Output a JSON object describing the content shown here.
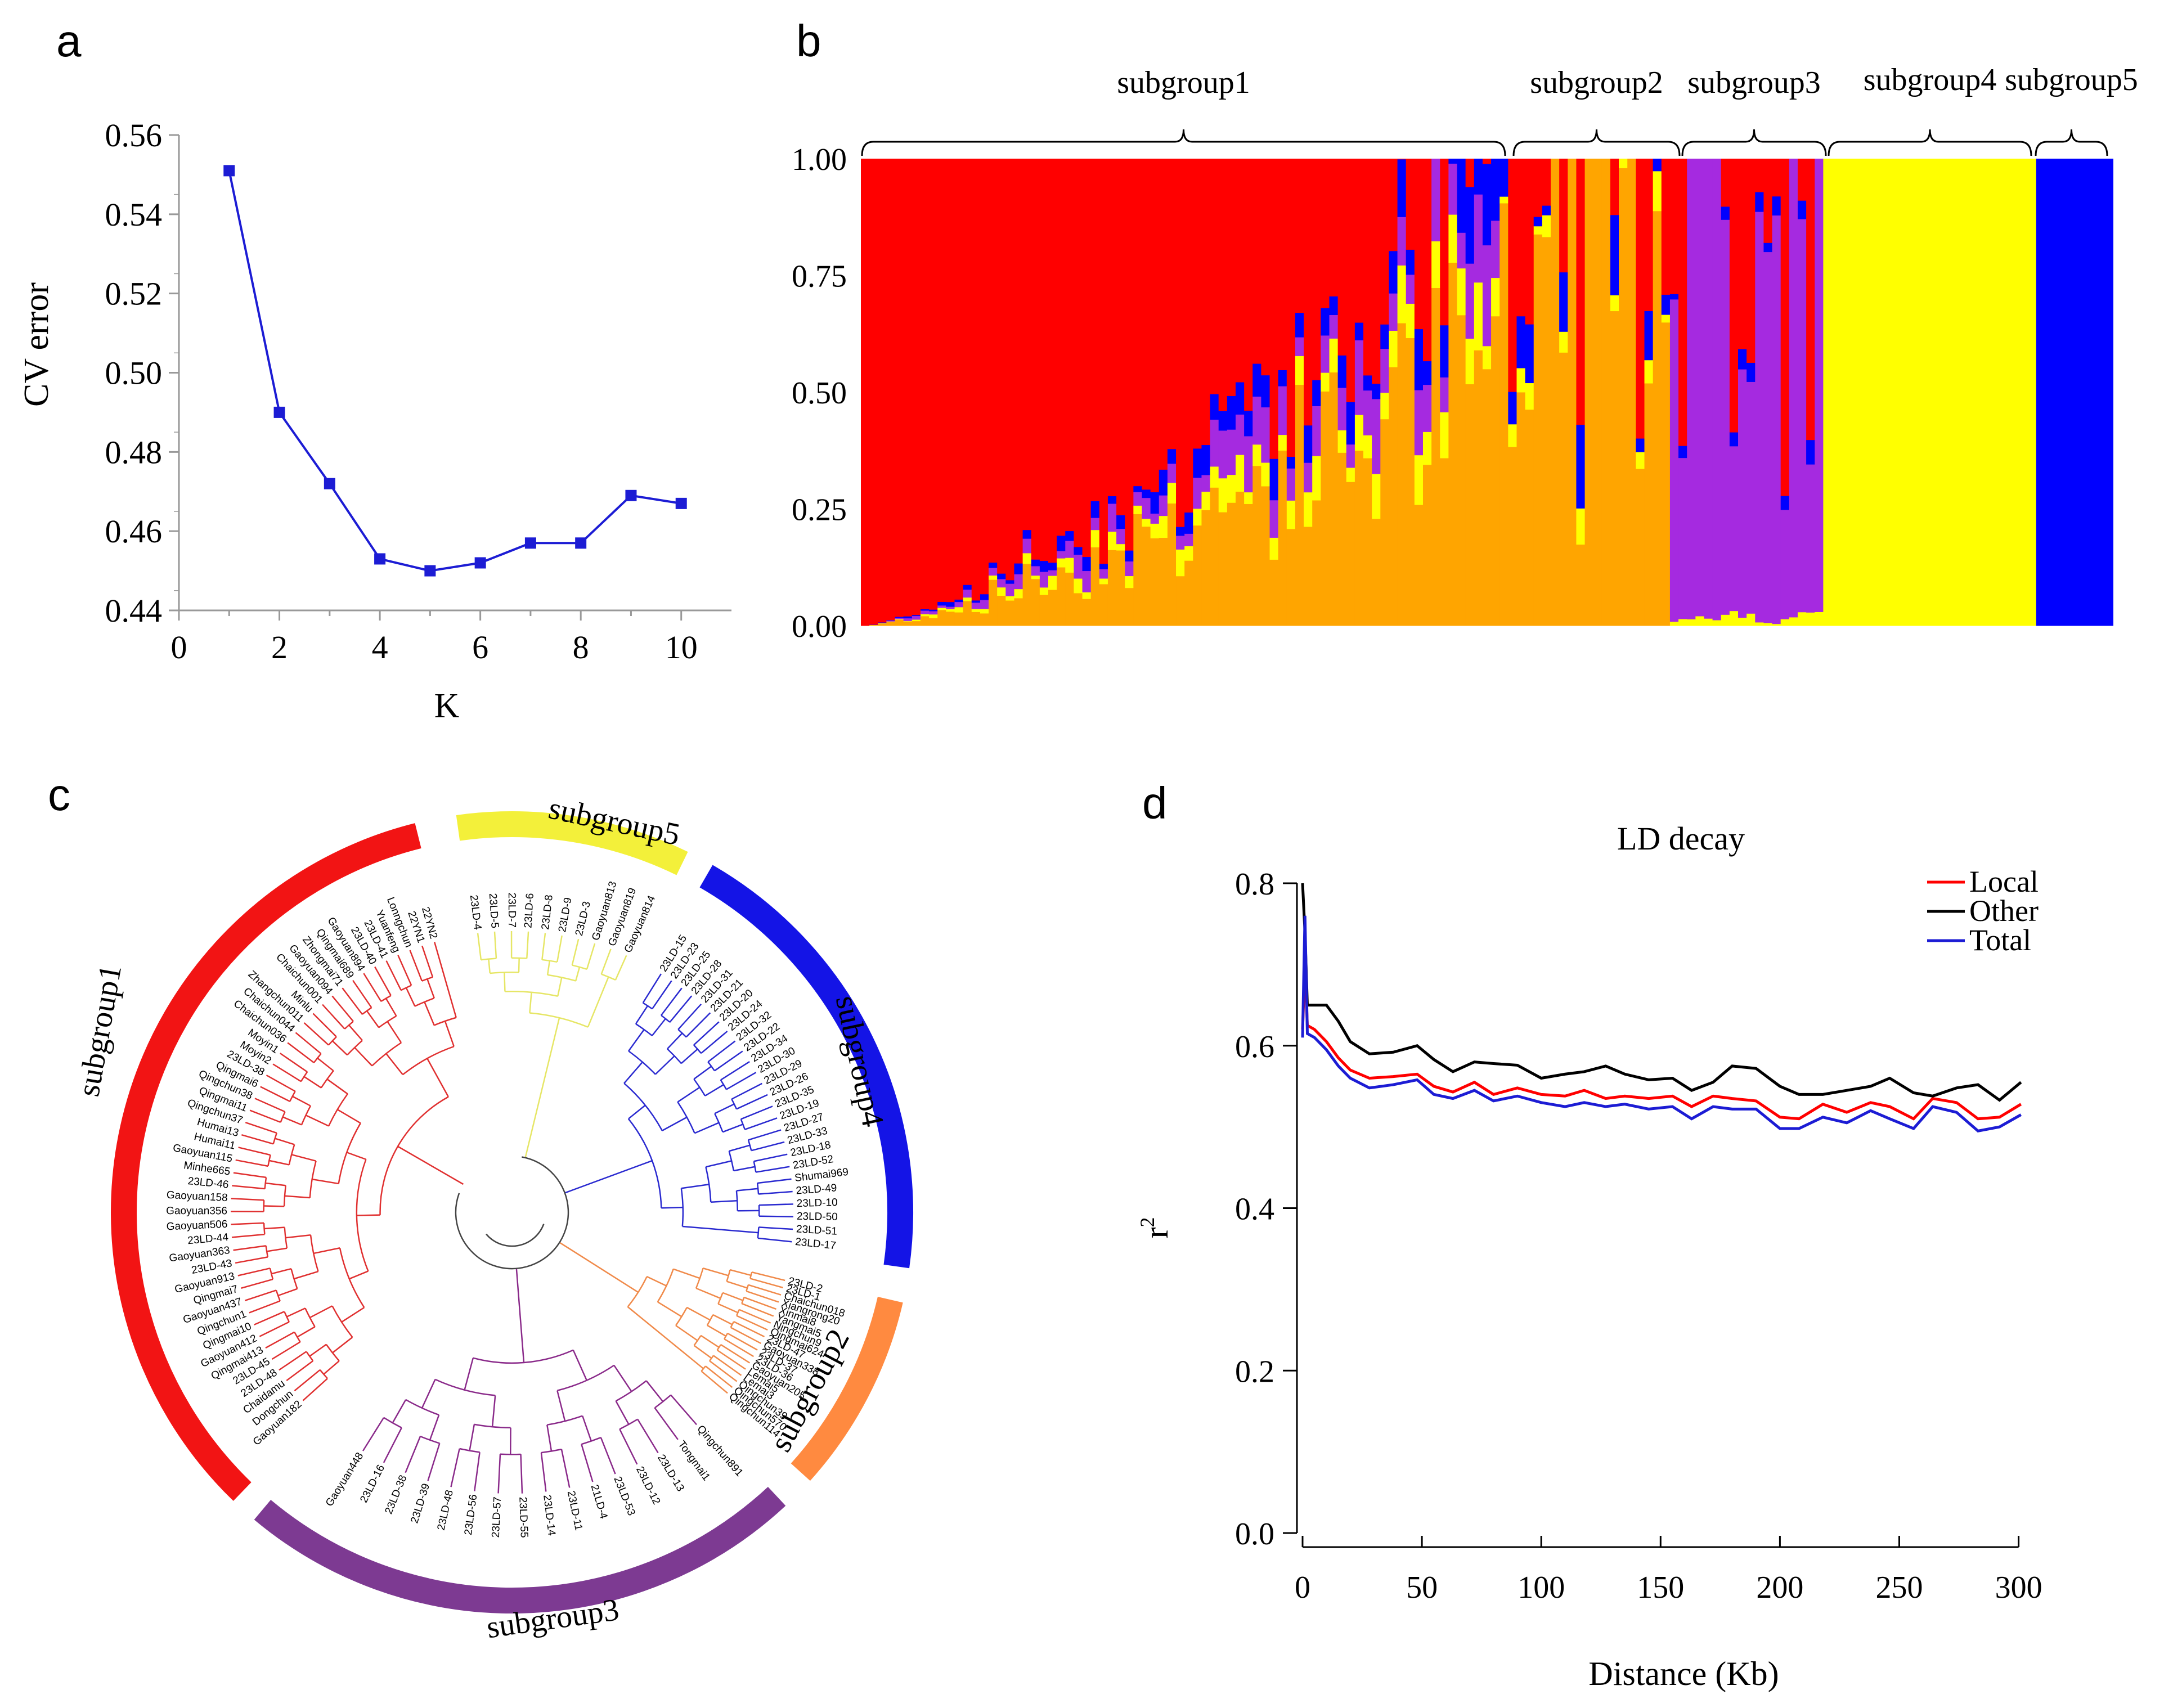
{
  "panel_labels": {
    "a": "a",
    "b": "b",
    "c": "c",
    "d": "d"
  },
  "colors": {
    "red": "#ff0000",
    "orange": "#ffa500",
    "yellow": "#ffff00",
    "purple": "#a52ae0",
    "blue": "#0000ff",
    "line_blue": "#1c1cd4",
    "tree_red": "#e03030",
    "tree_yellow": "#e6e666",
    "tree_blue": "#2a2ad0",
    "tree_orange": "#f08a4a",
    "tree_purple": "#8a2a8a",
    "tree_black": "#444444",
    "ring_red": "#f21414",
    "ring_yellow": "#f3f03a",
    "ring_blue": "#1414e6",
    "ring_orange": "#ff8a40",
    "ring_purple": "#7d3a92"
  },
  "chart_data": [
    {
      "panel": "a",
      "type": "line",
      "xlabel": "K",
      "ylabel": "CV error",
      "xlim": [
        0,
        11
      ],
      "ylim": [
        0.44,
        0.56
      ],
      "xticks": [
        "0",
        "2",
        "4",
        "6",
        "8",
        "10"
      ],
      "yticks": [
        "0.44",
        "0.46",
        "0.48",
        "0.50",
        "0.52",
        "0.54",
        "0.56"
      ],
      "x": [
        1,
        2,
        3,
        4,
        5,
        6,
        7,
        8,
        9,
        10
      ],
      "y": [
        0.551,
        0.49,
        0.472,
        0.453,
        0.45,
        0.452,
        0.457,
        0.457,
        0.469,
        0.467
      ]
    },
    {
      "panel": "b",
      "type": "bar",
      "stacked": true,
      "ylim": [
        0,
        1
      ],
      "yticks": [
        "0.00",
        "0.25",
        "0.50",
        "0.75",
        "1.00"
      ],
      "order": [
        "orange",
        "yellow",
        "purple",
        "blue",
        "red"
      ],
      "groups": [
        "subgroup1",
        "subgroup2",
        "subgroup3",
        "subgroup4",
        "subgroup5"
      ],
      "group_counts": [
        75,
        20,
        18,
        25,
        9
      ],
      "segments": [
        {
          "name": "subgroup1-gradient",
          "count": 75,
          "from": {
            "orange": 0.0,
            "yellow": 0.0,
            "purple": 0.0,
            "blue": 0.0
          },
          "to": {
            "orange": 0.55,
            "yellow": 0.1,
            "purple": 0.15,
            "blue": 0.1
          }
        },
        {
          "name": "subgroup2",
          "count": 20,
          "composition": {
            "orange": 0.85,
            "yellow": 0.05,
            "purple": 0.0,
            "blue": 0.1
          }
        },
        {
          "name": "subgroup3",
          "count": 18,
          "composition": {
            "orange": 0.0,
            "yellow": 0.02,
            "purple": 0.95,
            "blue": 0.03
          }
        },
        {
          "name": "subgroup4",
          "count": 25,
          "composition": {
            "orange": 0.0,
            "yellow": 1.0,
            "purple": 0.0,
            "blue": 0.0
          }
        },
        {
          "name": "subgroup5",
          "count": 9,
          "composition": {
            "orange": 0.0,
            "yellow": 0.0,
            "purple": 0.0,
            "blue": 1.0
          }
        }
      ]
    },
    {
      "panel": "c",
      "type": "tree",
      "title": "",
      "clades": [
        {
          "name": "subgroup5",
          "color": "yellow",
          "leaves": [
            "23LD-4",
            "23LD-5",
            "23LD-7",
            "23LD-6",
            "23LD-8",
            "23LD-9",
            "23LD-3",
            "Gaoyuan813",
            "Gaoyuan819",
            "Gaoyuan814"
          ]
        },
        {
          "name": "subgroup4",
          "color": "blue",
          "leaves": [
            "23LD-15",
            "23LD-23",
            "23LD-25",
            "23LD-28",
            "23LD-31",
            "23LD-21",
            "23LD-20",
            "23LD-24",
            "23LD-32",
            "23LD-22",
            "23LD-34",
            "23LD-30",
            "23LD-29",
            "23LD-26",
            "23LD-35",
            "23LD-19",
            "23LD-27",
            "23LD-33",
            "23LD-18",
            "23LD-52",
            "Shumai969",
            "23LD-49",
            "23LD-10",
            "23LD-50",
            "23LD-51",
            "23LD-17"
          ]
        },
        {
          "name": "subgroup2",
          "color": "orange",
          "leaves": [
            "23LD-2",
            "23LD-1",
            "Chaichun018",
            "Xiangrong20",
            "Xinmai8",
            "Yangmai5",
            "Ningchun9",
            "Qingmai624",
            "23LD-47",
            "Gaoyuan338",
            "23LD-37",
            "23LD-36",
            "Gaoyuan205",
            "Lemai5",
            "Lemai3",
            "Qingchun39",
            "Qingchun570",
            "Qingchun114"
          ]
        },
        {
          "name": "subgroup3",
          "color": "purple",
          "leaves": [
            "Qingchun891",
            "Tongmai1",
            "23LD-13",
            "23LD-12",
            "23LD-53",
            "21LD-4",
            "23LD-11",
            "23LD-14",
            "23LD-55",
            "23LD-57",
            "23LD-56",
            "23LD-48",
            "23LD-39",
            "23LD-38",
            "23LD-16",
            "Gaoyuan448"
          ]
        },
        {
          "name": "subgroup1",
          "color": "red",
          "leaves": [
            "Gaoyuan182",
            "Dongchun",
            "Chaidamu",
            "23LD-48",
            "23LD-45",
            "Qingmai413",
            "Gaoyuan412",
            "Qingmai10",
            "Qingchun1",
            "Gaoyuan437",
            "Qingmai7",
            "Gaoyuan913",
            "23LD-43",
            "Gaoyuan363",
            "23LD-44",
            "Gaoyuan506",
            "Gaoyuan356",
            "Gaoyuan158",
            "23LD-46",
            "Minhe665",
            "Gaoyuan115",
            "Humai11",
            "Humai13",
            "Qingchun37",
            "Qingmai11",
            "Qingchun38",
            "Qingmai6",
            "23LD-38",
            "Moyin2",
            "Moyin1",
            "Chaichun036",
            "Chaichun044",
            "Zhangchun011",
            "Minlu",
            "Chaichun001",
            "Gaoyuan094",
            "Zhongmai71",
            "Qingmai689",
            "Gaoyuan894",
            "23LD-40",
            "23LD-41",
            "Yuanfeng",
            "Lonngchun",
            "22YN1",
            "22YN2"
          ]
        }
      ]
    },
    {
      "panel": "d",
      "type": "line",
      "title": "LD decay",
      "xlabel": "Distance (Kb)",
      "ylabel": "r",
      "ylabel_sup": "2",
      "xlim": [
        0,
        310
      ],
      "ylim": [
        0.0,
        0.8
      ],
      "xticks": [
        "0",
        "50",
        "100",
        "150",
        "200",
        "250",
        "300"
      ],
      "yticks": [
        "0.0",
        "0.2",
        "0.4",
        "0.6",
        "0.8"
      ],
      "x": [
        0,
        1,
        2,
        5,
        10,
        15,
        20,
        28,
        38,
        48,
        55,
        63,
        72,
        80,
        90,
        100,
        110,
        118,
        127,
        135,
        145,
        155,
        163,
        172,
        180,
        190,
        200,
        208,
        218,
        228,
        238,
        246,
        256,
        264,
        274,
        283,
        292,
        301
      ],
      "series": [
        {
          "name": "Local",
          "color": "#ff0000",
          "values": [
            0.62,
            0.7,
            0.625,
            0.62,
            0.605,
            0.585,
            0.57,
            0.56,
            0.562,
            0.565,
            0.55,
            0.543,
            0.555,
            0.54,
            0.548,
            0.54,
            0.538,
            0.545,
            0.535,
            0.538,
            0.535,
            0.538,
            0.525,
            0.538,
            0.535,
            0.532,
            0.512,
            0.51,
            0.528,
            0.518,
            0.53,
            0.525,
            0.51,
            0.535,
            0.53,
            0.51,
            0.512,
            0.528
          ]
        },
        {
          "name": "Other",
          "color": "#000000",
          "values": [
            0.8,
            0.74,
            0.65,
            0.65,
            0.65,
            0.63,
            0.605,
            0.59,
            0.592,
            0.6,
            0.583,
            0.568,
            0.58,
            0.578,
            0.576,
            0.56,
            0.565,
            0.568,
            0.575,
            0.565,
            0.558,
            0.56,
            0.545,
            0.555,
            0.575,
            0.572,
            0.55,
            0.54,
            0.54,
            0.545,
            0.55,
            0.56,
            0.542,
            0.538,
            0.548,
            0.552,
            0.533,
            0.555
          ]
        },
        {
          "name": "Total",
          "color": "#1c1cd4",
          "values": [
            0.61,
            0.76,
            0.615,
            0.61,
            0.595,
            0.575,
            0.56,
            0.548,
            0.552,
            0.558,
            0.54,
            0.535,
            0.545,
            0.532,
            0.538,
            0.53,
            0.525,
            0.53,
            0.525,
            0.528,
            0.522,
            0.525,
            0.51,
            0.525,
            0.522,
            0.522,
            0.498,
            0.498,
            0.512,
            0.505,
            0.52,
            0.51,
            0.498,
            0.525,
            0.518,
            0.495,
            0.5,
            0.515
          ]
        }
      ],
      "legend": [
        "Local",
        "Other",
        "Total"
      ]
    }
  ]
}
